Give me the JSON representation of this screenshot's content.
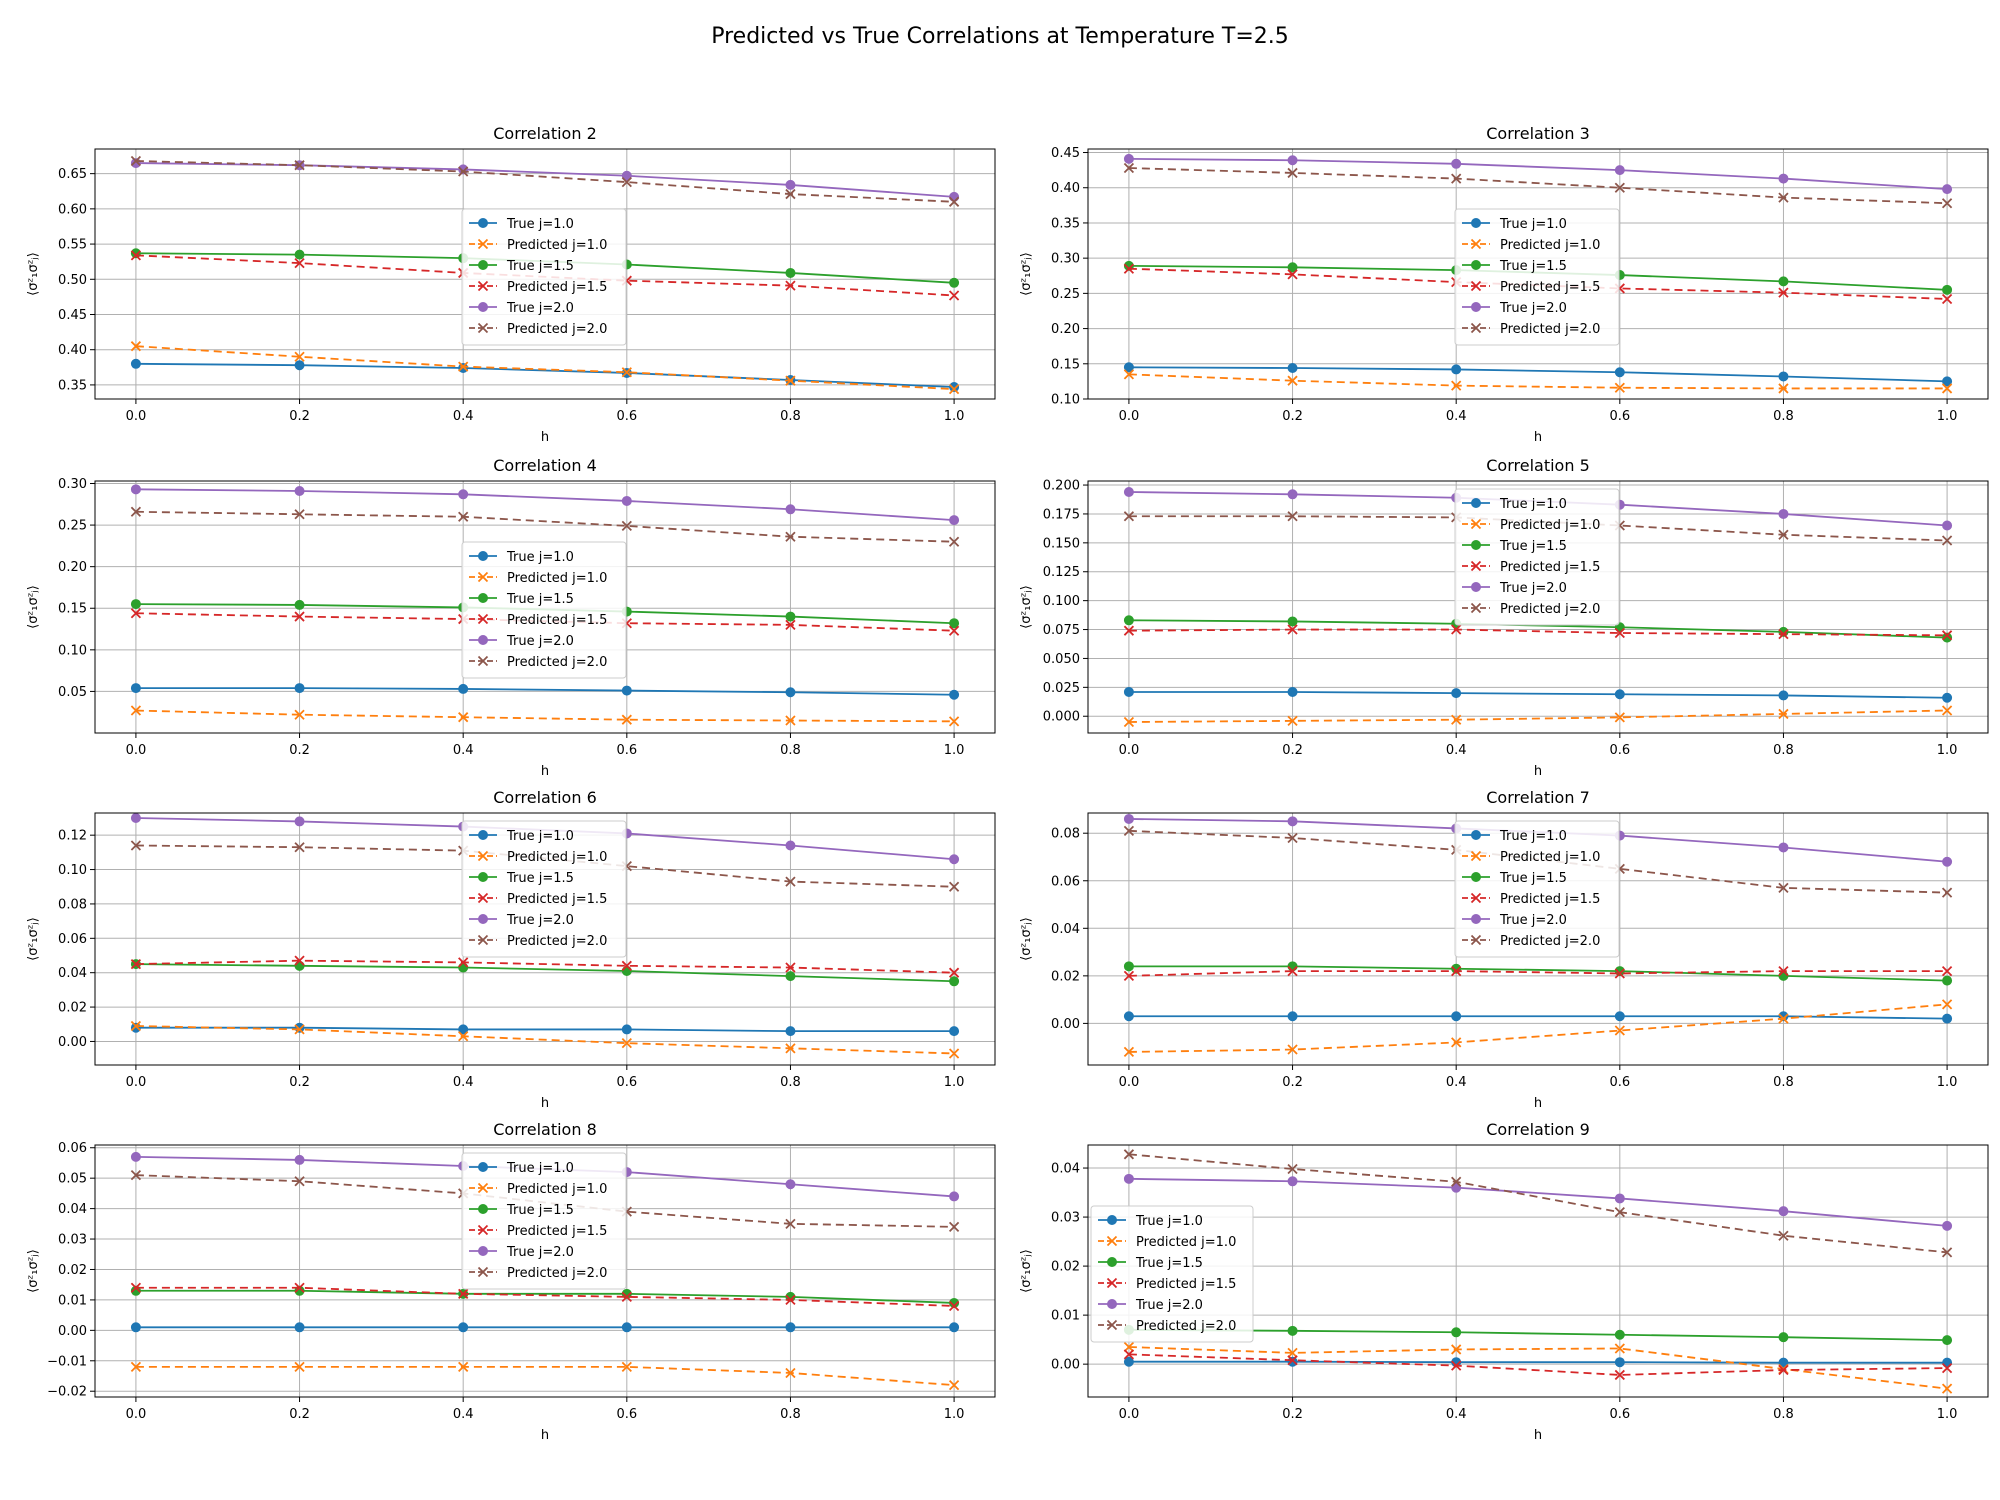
{
  "title": "Predicted vs True Correlations at Temperature T=2.5",
  "colors": {
    "true_j1": "#1f77b4",
    "pred_j1": "#ff7f0e",
    "true_j15": "#2ca02c",
    "pred_j15": "#d62728",
    "true_j2": "#9467bd",
    "pred_j2": "#8c564b"
  },
  "chart_data": [
    {
      "type": "line",
      "title": "Correlation 2",
      "xlabel": "h",
      "ylabel": "⟨σᶻ₁σᶻⱼ⟩",
      "grid": true,
      "legend_position": "center",
      "xlim": [
        -0.05,
        1.05
      ],
      "ylim": [
        0.33,
        0.685
      ],
      "xticks": [
        "0.0",
        "0.2",
        "0.4",
        "0.6",
        "0.8",
        "1.0"
      ],
      "yticks": [
        "0.35",
        "0.40",
        "0.45",
        "0.50",
        "0.55",
        "0.60",
        "0.65"
      ],
      "x": [
        0.0,
        0.2,
        0.4,
        0.6,
        0.8,
        1.0
      ],
      "series": [
        {
          "name": "True j=1.0",
          "values": [
            0.38,
            0.378,
            0.374,
            0.367,
            0.357,
            0.347
          ]
        },
        {
          "name": "Predicted j=1.0",
          "values": [
            0.405,
            0.39,
            0.376,
            0.368,
            0.356,
            0.344
          ]
        },
        {
          "name": "True j=1.5",
          "values": [
            0.537,
            0.535,
            0.53,
            0.521,
            0.509,
            0.495
          ]
        },
        {
          "name": "Predicted j=1.5",
          "values": [
            0.534,
            0.523,
            0.509,
            0.498,
            0.491,
            0.477
          ]
        },
        {
          "name": "True j=2.0",
          "values": [
            0.665,
            0.662,
            0.656,
            0.647,
            0.634,
            0.617
          ]
        },
        {
          "name": "Predicted j=2.0",
          "values": [
            0.668,
            0.662,
            0.653,
            0.638,
            0.621,
            0.61
          ]
        }
      ]
    },
    {
      "type": "line",
      "title": "Correlation 3",
      "xlabel": "h",
      "ylabel": "⟨σᶻ₁σᶻⱼ⟩",
      "grid": true,
      "legend_position": "center",
      "xlim": [
        -0.05,
        1.05
      ],
      "ylim": [
        0.1,
        0.455
      ],
      "xticks": [
        "0.0",
        "0.2",
        "0.4",
        "0.6",
        "0.8",
        "1.0"
      ],
      "yticks": [
        "0.10",
        "0.15",
        "0.20",
        "0.25",
        "0.30",
        "0.35",
        "0.40",
        "0.45"
      ],
      "x": [
        0.0,
        0.2,
        0.4,
        0.6,
        0.8,
        1.0
      ],
      "series": [
        {
          "name": "True j=1.0",
          "values": [
            0.145,
            0.144,
            0.142,
            0.138,
            0.132,
            0.125
          ]
        },
        {
          "name": "Predicted j=1.0",
          "values": [
            0.135,
            0.126,
            0.119,
            0.116,
            0.115,
            0.115
          ]
        },
        {
          "name": "True j=1.5",
          "values": [
            0.289,
            0.287,
            0.283,
            0.276,
            0.267,
            0.255
          ]
        },
        {
          "name": "Predicted j=1.5",
          "values": [
            0.285,
            0.277,
            0.266,
            0.257,
            0.251,
            0.242
          ]
        },
        {
          "name": "True j=2.0",
          "values": [
            0.441,
            0.439,
            0.434,
            0.425,
            0.413,
            0.398
          ]
        },
        {
          "name": "Predicted j=2.0",
          "values": [
            0.428,
            0.421,
            0.413,
            0.4,
            0.386,
            0.378
          ]
        }
      ]
    },
    {
      "type": "line",
      "title": "Correlation 4",
      "xlabel": "h",
      "ylabel": "⟨σᶻ₁σᶻⱼ⟩",
      "grid": true,
      "legend_position": "center",
      "xlim": [
        -0.05,
        1.05
      ],
      "ylim": [
        0.0,
        0.303
      ],
      "xticks": [
        "0.0",
        "0.2",
        "0.4",
        "0.6",
        "0.8",
        "1.0"
      ],
      "yticks": [
        "0.05",
        "0.10",
        "0.15",
        "0.20",
        "0.25",
        "0.30"
      ],
      "x": [
        0.0,
        0.2,
        0.4,
        0.6,
        0.8,
        1.0
      ],
      "series": [
        {
          "name": "True j=1.0",
          "values": [
            0.054,
            0.054,
            0.053,
            0.051,
            0.049,
            0.046
          ]
        },
        {
          "name": "Predicted j=1.0",
          "values": [
            0.027,
            0.022,
            0.019,
            0.016,
            0.015,
            0.014
          ]
        },
        {
          "name": "True j=1.5",
          "values": [
            0.155,
            0.154,
            0.151,
            0.146,
            0.14,
            0.132
          ]
        },
        {
          "name": "Predicted j=1.5",
          "values": [
            0.144,
            0.14,
            0.137,
            0.132,
            0.13,
            0.123
          ]
        },
        {
          "name": "True j=2.0",
          "values": [
            0.293,
            0.291,
            0.287,
            0.279,
            0.269,
            0.256
          ]
        },
        {
          "name": "Predicted j=2.0",
          "values": [
            0.266,
            0.263,
            0.26,
            0.249,
            0.236,
            0.23
          ]
        }
      ]
    },
    {
      "type": "line",
      "title": "Correlation 5",
      "xlabel": "h",
      "ylabel": "⟨σᶻ₁σᶻⱼ⟩",
      "grid": true,
      "legend_position": "upper center",
      "xlim": [
        -0.05,
        1.05
      ],
      "ylim": [
        -0.0145,
        0.2035
      ],
      "xticks": [
        "0.0",
        "0.2",
        "0.4",
        "0.6",
        "0.8",
        "1.0"
      ],
      "yticks": [
        "0.000",
        "0.025",
        "0.050",
        "0.075",
        "0.100",
        "0.125",
        "0.150",
        "0.175",
        "0.200"
      ],
      "x": [
        0.0,
        0.2,
        0.4,
        0.6,
        0.8,
        1.0
      ],
      "series": [
        {
          "name": "True j=1.0",
          "values": [
            0.021,
            0.021,
            0.02,
            0.019,
            0.018,
            0.016
          ]
        },
        {
          "name": "Predicted j=1.0",
          "values": [
            -0.005,
            -0.004,
            -0.003,
            -0.001,
            0.002,
            0.005
          ]
        },
        {
          "name": "True j=1.5",
          "values": [
            0.083,
            0.082,
            0.08,
            0.077,
            0.073,
            0.068
          ]
        },
        {
          "name": "Predicted j=1.5",
          "values": [
            0.074,
            0.075,
            0.075,
            0.072,
            0.071,
            0.07
          ]
        },
        {
          "name": "True j=2.0",
          "values": [
            0.194,
            0.192,
            0.189,
            0.183,
            0.175,
            0.165
          ]
        },
        {
          "name": "Predicted j=2.0",
          "values": [
            0.173,
            0.173,
            0.172,
            0.165,
            0.157,
            0.152
          ]
        }
      ]
    },
    {
      "type": "line",
      "title": "Correlation 6",
      "xlabel": "h",
      "ylabel": "⟨σᶻ₁σᶻⱼ⟩",
      "grid": true,
      "legend_position": "upper center",
      "xlim": [
        -0.05,
        1.05
      ],
      "ylim": [
        -0.0137,
        0.1329
      ],
      "xticks": [
        "0.0",
        "0.2",
        "0.4",
        "0.6",
        "0.8",
        "1.0"
      ],
      "yticks": [
        "0.00",
        "0.02",
        "0.04",
        "0.06",
        "0.08",
        "0.10",
        "0.12"
      ],
      "x": [
        0.0,
        0.2,
        0.4,
        0.6,
        0.8,
        1.0
      ],
      "series": [
        {
          "name": "True j=1.0",
          "values": [
            0.008,
            0.008,
            0.007,
            0.007,
            0.006,
            0.006
          ]
        },
        {
          "name": "Predicted j=1.0",
          "values": [
            0.009,
            0.007,
            0.003,
            -0.001,
            -0.004,
            -0.007
          ]
        },
        {
          "name": "True j=1.5",
          "values": [
            0.045,
            0.044,
            0.043,
            0.041,
            0.038,
            0.035
          ]
        },
        {
          "name": "Predicted j=1.5",
          "values": [
            0.045,
            0.047,
            0.046,
            0.044,
            0.043,
            0.04
          ]
        },
        {
          "name": "True j=2.0",
          "values": [
            0.13,
            0.128,
            0.125,
            0.121,
            0.114,
            0.106
          ]
        },
        {
          "name": "Predicted j=2.0",
          "values": [
            0.114,
            0.113,
            0.111,
            0.102,
            0.093,
            0.09
          ]
        }
      ]
    },
    {
      "type": "line",
      "title": "Correlation 7",
      "xlabel": "h",
      "ylabel": "⟨σᶻ₁σᶻⱼ⟩",
      "grid": true,
      "legend_position": "upper center",
      "xlim": [
        -0.05,
        1.05
      ],
      "ylim": [
        -0.0175,
        0.0885
      ],
      "xticks": [
        "0.0",
        "0.2",
        "0.4",
        "0.6",
        "0.8",
        "1.0"
      ],
      "yticks": [
        "0.00",
        "0.02",
        "0.04",
        "0.06",
        "0.08"
      ],
      "x": [
        0.0,
        0.2,
        0.4,
        0.6,
        0.8,
        1.0
      ],
      "series": [
        {
          "name": "True j=1.0",
          "values": [
            0.003,
            0.003,
            0.003,
            0.003,
            0.003,
            0.002
          ]
        },
        {
          "name": "Predicted j=1.0",
          "values": [
            -0.012,
            -0.011,
            -0.008,
            -0.003,
            0.002,
            0.008
          ]
        },
        {
          "name": "True j=1.5",
          "values": [
            0.024,
            0.024,
            0.023,
            0.022,
            0.02,
            0.018
          ]
        },
        {
          "name": "Predicted j=1.5",
          "values": [
            0.02,
            0.022,
            0.022,
            0.021,
            0.022,
            0.022
          ]
        },
        {
          "name": "True j=2.0",
          "values": [
            0.086,
            0.085,
            0.082,
            0.079,
            0.074,
            0.068
          ]
        },
        {
          "name": "Predicted j=2.0",
          "values": [
            0.081,
            0.078,
            0.073,
            0.065,
            0.057,
            0.055
          ]
        }
      ]
    },
    {
      "type": "line",
      "title": "Correlation 8",
      "xlabel": "h",
      "ylabel": "⟨σᶻ₁σᶻⱼ⟩",
      "grid": true,
      "legend_position": "upper center",
      "xlim": [
        -0.05,
        1.05
      ],
      "ylim": [
        -0.0219,
        0.0609
      ],
      "xticks": [
        "0.0",
        "0.2",
        "0.4",
        "0.6",
        "0.8",
        "1.0"
      ],
      "yticks": [
        "−0.02",
        "−0.01",
        "0.00",
        "0.01",
        "0.02",
        "0.03",
        "0.04",
        "0.05",
        "0.06"
      ],
      "x": [
        0.0,
        0.2,
        0.4,
        0.6,
        0.8,
        1.0
      ],
      "series": [
        {
          "name": "True j=1.0",
          "values": [
            0.001,
            0.001,
            0.001,
            0.001,
            0.001,
            0.001
          ]
        },
        {
          "name": "Predicted j=1.0",
          "values": [
            -0.012,
            -0.012,
            -0.012,
            -0.012,
            -0.014,
            -0.018
          ]
        },
        {
          "name": "True j=1.5",
          "values": [
            0.013,
            0.013,
            0.012,
            0.012,
            0.011,
            0.009
          ]
        },
        {
          "name": "Predicted j=1.5",
          "values": [
            0.014,
            0.014,
            0.012,
            0.011,
            0.01,
            0.008
          ]
        },
        {
          "name": "True j=2.0",
          "values": [
            0.057,
            0.056,
            0.054,
            0.052,
            0.048,
            0.044
          ]
        },
        {
          "name": "Predicted j=2.0",
          "values": [
            0.051,
            0.049,
            0.045,
            0.039,
            0.035,
            0.034
          ]
        }
      ]
    },
    {
      "type": "line",
      "title": "Correlation 9",
      "xlabel": "h",
      "ylabel": "⟨σᶻ₁σᶻⱼ⟩",
      "grid": true,
      "legend_position": "center left",
      "xlim": [
        -0.05,
        1.05
      ],
      "ylim": [
        -0.0067,
        0.0447
      ],
      "xticks": [
        "0.0",
        "0.2",
        "0.4",
        "0.6",
        "0.8",
        "1.0"
      ],
      "yticks": [
        "0.00",
        "0.01",
        "0.02",
        "0.03",
        "0.04"
      ],
      "x": [
        0.0,
        0.2,
        0.4,
        0.6,
        0.8,
        1.0
      ],
      "series": [
        {
          "name": "True j=1.0",
          "values": [
            0.0005,
            0.0005,
            0.0004,
            0.0004,
            0.0003,
            0.0003
          ]
        },
        {
          "name": "Predicted j=1.0",
          "values": [
            0.0035,
            0.0023,
            0.003,
            0.0032,
            -0.001,
            -0.005
          ]
        },
        {
          "name": "True j=1.5",
          "values": [
            0.007,
            0.0068,
            0.0065,
            0.006,
            0.0055,
            0.0049
          ]
        },
        {
          "name": "Predicted j=1.5",
          "values": [
            0.002,
            0.0008,
            -0.0003,
            -0.0022,
            -0.0012,
            -0.0008
          ]
        },
        {
          "name": "True j=2.0",
          "values": [
            0.0378,
            0.0373,
            0.036,
            0.0338,
            0.0312,
            0.0282
          ]
        },
        {
          "name": "Predicted j=2.0",
          "values": [
            0.0428,
            0.0398,
            0.0372,
            0.031,
            0.0262,
            0.0228
          ]
        }
      ]
    }
  ]
}
